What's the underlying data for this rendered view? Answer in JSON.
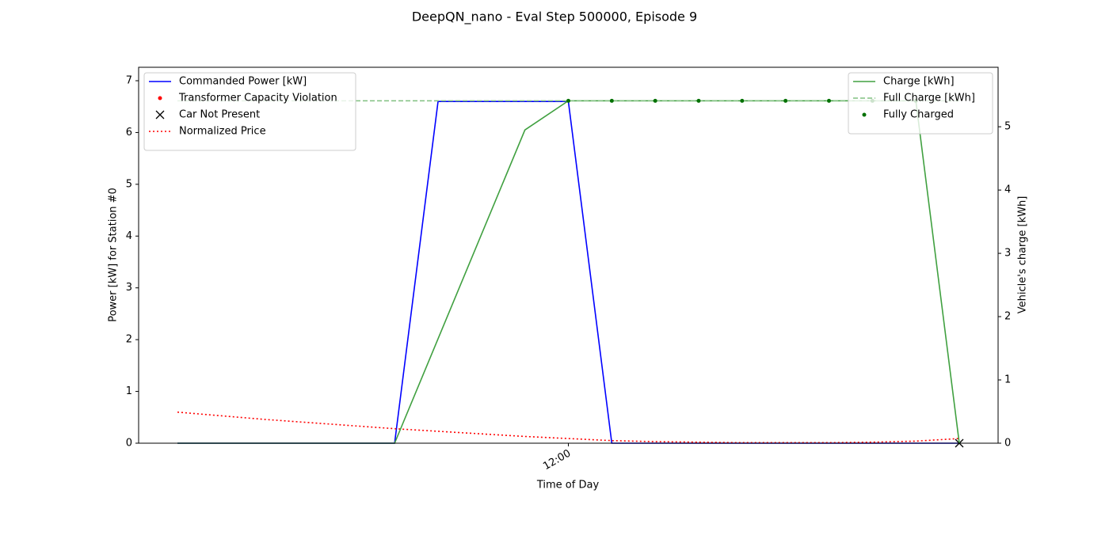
{
  "chart_data": {
    "type": "line",
    "title": "DeepQN_nano - Eval Step 500000, Episode 9",
    "xlabel": "Time of Day",
    "ylabel": "Power [kW] for Station #0",
    "y2label": "Vehicle's charge [kWh]",
    "categories": [
      null,
      null,
      null,
      null,
      null,
      null,
      null,
      null,
      null,
      "12:00",
      null,
      null,
      null,
      null,
      null,
      null,
      null,
      null,
      null
    ],
    "ylim": [
      0,
      7.26
    ],
    "yticks": [
      0,
      1,
      2,
      3,
      4,
      5,
      6,
      7
    ],
    "y2lim": [
      0,
      5.94
    ],
    "y2ticks": [
      0,
      1,
      2,
      3,
      4,
      5
    ],
    "legend_loc": "upper left",
    "legend2_loc": "upper right",
    "series": [
      {
        "name": "Commanded Power [kW]",
        "color": "#0000ff",
        "linestyle": "solid",
        "marker": "none",
        "values": [
          0,
          0,
          0,
          0,
          0,
          0,
          6.6,
          6.6,
          6.6,
          6.6,
          0,
          0,
          0,
          0,
          0,
          0,
          0,
          0,
          0
        ]
      },
      {
        "name": "Transformer Capacity Violation",
        "color": "#ff0000",
        "linestyle": "none",
        "marker": "o",
        "values": [
          null,
          null,
          null,
          null,
          null,
          null,
          null,
          null,
          null,
          null,
          null,
          null,
          null,
          null,
          null,
          null,
          null,
          null,
          null
        ]
      },
      {
        "name": "Car Not Present",
        "color": "#000000",
        "linestyle": "none",
        "marker": "x",
        "values": [
          null,
          null,
          null,
          null,
          null,
          null,
          null,
          null,
          null,
          null,
          null,
          null,
          null,
          null,
          null,
          null,
          null,
          null,
          0
        ]
      },
      {
        "name": "Normalized Price",
        "color": "#ff0000",
        "linestyle": "dotted",
        "marker": "none",
        "values": [
          0.6,
          0.53,
          0.46,
          0.4,
          0.34,
          0.28,
          0.23,
          0.18,
          0.13,
          0.09,
          0.05,
          0.03,
          0.02,
          0.01,
          0.01,
          0.01,
          0.02,
          0.04,
          0.09
        ]
      },
      {
        "name": "Charge [kWh]",
        "color": "#40a040",
        "linestyle": "solid",
        "marker": "none",
        "axis": "y2",
        "values": [
          0,
          0,
          0,
          0,
          0,
          0,
          1.65,
          3.3,
          4.95,
          5.41,
          5.41,
          5.41,
          5.41,
          5.41,
          5.41,
          5.41,
          5.41,
          5.41,
          0
        ]
      },
      {
        "name": "Full Charge [kWh]",
        "color": "#80c080",
        "linestyle": "dashed",
        "marker": "none",
        "axis": "y2",
        "values": [
          5.41,
          5.41,
          5.41,
          5.41,
          5.41,
          5.41,
          5.41,
          5.41,
          5.41,
          5.41,
          5.41,
          5.41,
          5.41,
          5.41,
          5.41,
          5.41,
          5.41,
          5.41,
          5.41
        ]
      },
      {
        "name": "Fully Charged",
        "color": "#007000",
        "linestyle": "none",
        "marker": "o",
        "axis": "y2",
        "values": [
          null,
          null,
          null,
          null,
          null,
          null,
          null,
          null,
          null,
          5.41,
          5.41,
          5.41,
          5.41,
          5.41,
          5.41,
          5.41,
          5.41,
          5.41,
          null
        ]
      }
    ]
  }
}
